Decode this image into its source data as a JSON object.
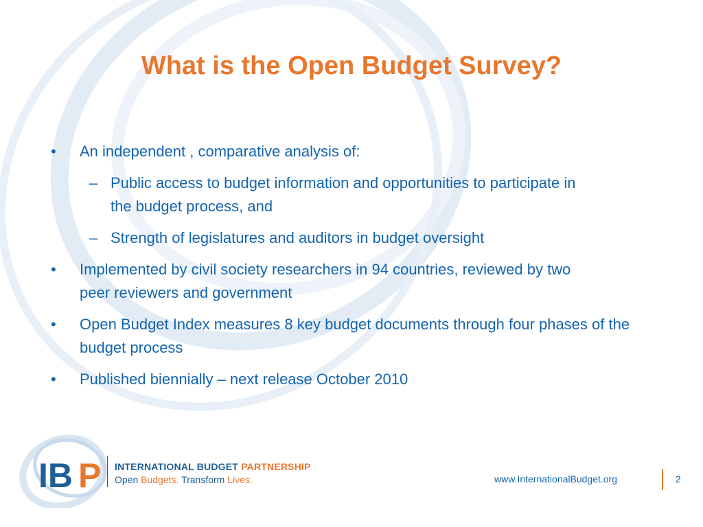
{
  "slide": {
    "title": "What is the Open Budget Survey?",
    "bullets": [
      {
        "level": 1,
        "marker": "•",
        "text": "An independent , comparative analysis of:"
      },
      {
        "level": 2,
        "marker": "–",
        "text": "Public access to budget information and opportunities to participate in the budget process, and"
      },
      {
        "level": 2,
        "marker": "–",
        "text": "Strength of legislatures and auditors in budget oversight"
      },
      {
        "level": 1,
        "marker": "•",
        "text": "Implemented by civil society researchers in 94 countries, reviewed by two peer reviewers and government"
      },
      {
        "level": 1,
        "marker": "•",
        "text": "Open Budget Index measures 8 key budget documents through four phases of the budget process"
      },
      {
        "level": 1,
        "marker": "•",
        "text": "Published biennially – next release October 2010"
      }
    ]
  },
  "logo": {
    "letters_ib": "IB",
    "letter_p": "P",
    "line1_part1": "INTERNATIONAL BUDGET",
    "line1_part2": "PARTNERSHIP",
    "line2_open": "Open",
    "line2_budgets": "Budgets.",
    "line2_transform": "Transform",
    "line2_lives": "Lives."
  },
  "footer": {
    "url": "www.InternationalBudget.org",
    "page_number": "2"
  },
  "colors": {
    "title": "#e8772e",
    "body_text": "#1464ad",
    "logo_blue": "#1e5f96",
    "accent_orange": "#e8772e",
    "swirl": "#dce8f3"
  }
}
